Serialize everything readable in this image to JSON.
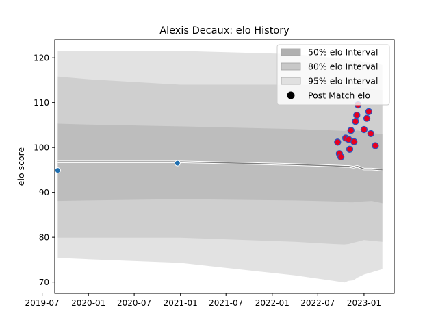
{
  "chart_data": {
    "type": "scatter",
    "title": "Alexis Decaux: elo History",
    "xlabel": "",
    "ylabel": "elo score",
    "xlim": [
      "2019-08-20",
      "2023-05-01"
    ],
    "ylim": [
      67.5,
      124
    ],
    "x_ticks": [
      "2019-07",
      "2020-01",
      "2020-07",
      "2021-01",
      "2021-07",
      "2022-01",
      "2022-07",
      "2023-01"
    ],
    "x_tick_labels": [
      "2019-07",
      "2020-01",
      "2020-07",
      "2021-01",
      "2021-07",
      "2022-01",
      "2022-07",
      "2023-01"
    ],
    "y_ticks": [
      70,
      80,
      90,
      100,
      110,
      120
    ],
    "grid": false,
    "legend_position": "top-right",
    "legend": [
      {
        "label": "50% elo Interval",
        "color": "#b0b0b0"
      },
      {
        "label": "80% elo Interval",
        "color": "#cbcbcb"
      },
      {
        "label": "95% elo Interval",
        "color": "#e2e2e2"
      },
      {
        "label": "Post Match elo",
        "color": "#000000"
      }
    ],
    "bands": {
      "x": [
        "2019-09-01",
        "2020-01-01",
        "2021-01-01",
        "2022-04-01",
        "2022-09-01",
        "2022-10-15",
        "2022-11-01",
        "2022-11-20",
        "2022-12-05",
        "2023-01-01",
        "2023-02-01",
        "2023-03-15"
      ],
      "mean": [
        96.8,
        96.8,
        96.8,
        96.2,
        95.9,
        95.8,
        95.8,
        95.6,
        95.8,
        95.2,
        95.2,
        95.0
      ],
      "p95_upper": [
        121.5,
        121.5,
        121.5,
        120.8,
        120.0,
        119.8,
        119.5,
        119.2,
        119.6,
        119.0,
        118.8,
        118.4
      ],
      "p95_lower": [
        75.4,
        75.1,
        74.3,
        71.5,
        70.3,
        69.9,
        70.3,
        70.4,
        71.0,
        71.7,
        72.2,
        72.9
      ],
      "p80_upper": [
        115.8,
        115.2,
        114.0,
        114.0,
        114.0,
        113.9,
        113.5,
        113.2,
        113.6,
        113.2,
        113.0,
        112.8
      ],
      "p80_lower": [
        79.9,
        79.9,
        79.9,
        79.0,
        78.5,
        78.4,
        78.5,
        78.8,
        79.0,
        79.4,
        79.2,
        79.0
      ],
      "p50_upper": [
        105.3,
        105.1,
        104.7,
        104.1,
        103.8,
        103.7,
        103.9,
        103.6,
        103.8,
        103.5,
        103.2,
        103.0
      ],
      "p50_lower": [
        88.1,
        88.2,
        88.5,
        88.2,
        88.0,
        87.9,
        87.8,
        87.8,
        87.9,
        88.0,
        88.1,
        87.6
      ]
    },
    "series": [
      {
        "name": "",
        "color": "#1f6fb0",
        "points": [
          {
            "x": "2019-09-01",
            "y": 94.9
          },
          {
            "x": "2020-12-20",
            "y": 96.5
          }
        ]
      },
      {
        "name": "",
        "color": "#e8001f",
        "stroke": "#2a55c0",
        "points": [
          {
            "x": "2022-09-18",
            "y": 101.2
          },
          {
            "x": "2022-09-25",
            "y": 98.6
          },
          {
            "x": "2022-10-01",
            "y": 97.9
          },
          {
            "x": "2022-10-20",
            "y": 102.1
          },
          {
            "x": "2022-11-01",
            "y": 101.8
          },
          {
            "x": "2022-11-05",
            "y": 99.6
          },
          {
            "x": "2022-11-10",
            "y": 103.8
          },
          {
            "x": "2022-11-22",
            "y": 101.3
          },
          {
            "x": "2022-11-28",
            "y": 105.8
          },
          {
            "x": "2022-12-03",
            "y": 107.2
          },
          {
            "x": "2022-12-08",
            "y": 109.5
          },
          {
            "x": "2023-01-01",
            "y": 104.0
          },
          {
            "x": "2023-01-12",
            "y": 106.5
          },
          {
            "x": "2023-01-20",
            "y": 108.0
          },
          {
            "x": "2023-01-28",
            "y": 103.1
          },
          {
            "x": "2023-02-15",
            "y": 100.4
          }
        ]
      }
    ]
  }
}
